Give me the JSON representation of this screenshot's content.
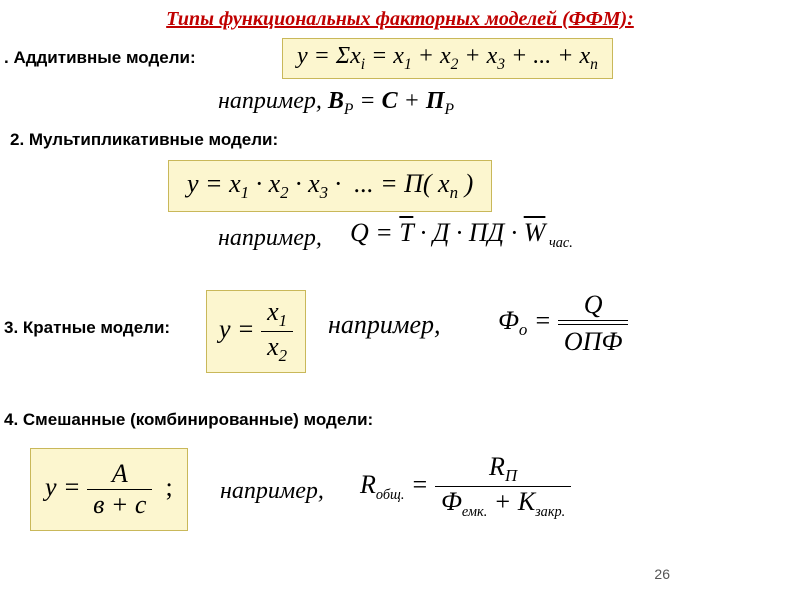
{
  "title": "Типы функциональных факторных моделей (ФФМ):",
  "s1": {
    "label": ". Аддитивные модели:",
    "formula_html": "y = Σx<span class='sub'>i</span> = x<span class='sub'>1</span> + x<span class='sub'>2</span> + x<span class='sub'>3</span> + ... + x<span class='sub'>n</span>",
    "example_prefix": "например, ",
    "example_html": "<b>В</b><span class='sub'>Р</span> = <b>С</b> + <b>П</b><span class='sub'>Р</span>"
  },
  "s2": {
    "label": "2. Мультипликативные модели:",
    "formula_html": "y = x<span class='sub'>1</span> · x<span class='sub'>2</span> · x<span class='sub'>3</span> ·&nbsp; ... = П( x<span class='sub'>n</span> )",
    "example_prefix": "например,",
    "example_html": "Q = <span class='ovl'>T</span> · Д · ПД · <span class='ovl'>W</span><span class='subsm'> час.</span>"
  },
  "s3": {
    "label": "3. Кратные модели:",
    "frac_num": "x<span class='sub'>1</span>",
    "frac_den": "x<span class='sub'>2</span>",
    "example_prefix": "например,",
    "example_rhs_num": "Q",
    "example_rhs_den": "ОПФ",
    "example_lhs": "Ф<span class='sub'>о</span> ="
  },
  "s4": {
    "label": "4. Смешанные (комбинированные) модели:",
    "frac_num": "A",
    "frac_den": "в + с",
    "example_prefix": "например,",
    "example_lhs": "R<span class='subsm'>общ.</span> =",
    "example_rhs_num": "R<span class='sub'>П</span>",
    "example_rhs_den": "Ф<span class='subsm'>емк.</span> + К<span class='subsm'>закр.</span>"
  },
  "page": "26",
  "colors": {
    "title": "#c00000",
    "box_bg": "#fcf6cf",
    "box_border": "#c9b85a"
  }
}
